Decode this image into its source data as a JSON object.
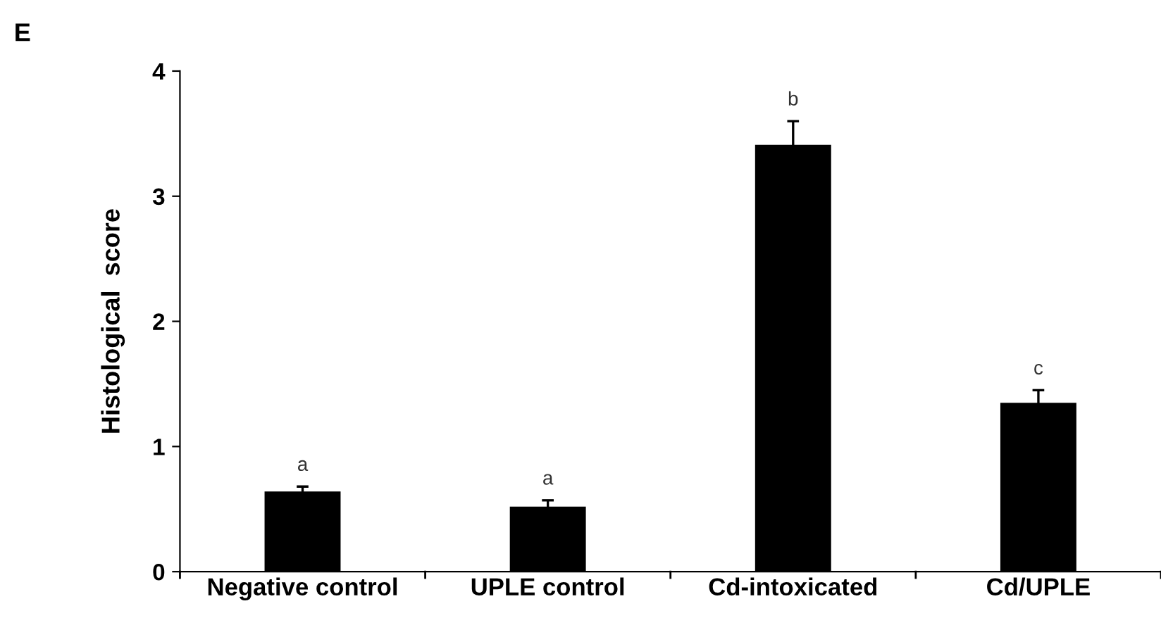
{
  "chart_data": {
    "type": "bar",
    "ylabel": "Histological  score",
    "categories": [
      "Negative control",
      "UPLE control",
      "Cd-intoxicated",
      "Cd/UPLE"
    ],
    "values": [
      0.64,
      0.52,
      3.41,
      1.35
    ],
    "errors": [
      0.04,
      0.05,
      0.19,
      0.1
    ],
    "color": "#000000",
    "ylim": [
      0,
      4
    ],
    "yticks": [
      0,
      1,
      2,
      3,
      4
    ],
    "grid": false,
    "legend": false,
    "annotations": [
      "E",
      {
        "text": "a",
        "x": "Negative control",
        "y": 0.68
      },
      {
        "text": "a",
        "x": "UPLE control",
        "y": 0.57
      },
      {
        "text": "b",
        "x": "Cd-intoxicated",
        "y": 3.6
      },
      {
        "text": "c",
        "x": "Cd/UPLE",
        "y": 1.45
      }
    ]
  }
}
